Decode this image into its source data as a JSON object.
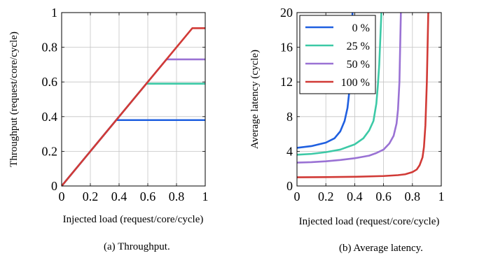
{
  "chart_data": [
    {
      "type": "line",
      "caption": "(a) Throughput.",
      "xlabel": "Injected load (request/core/cycle)",
      "ylabel": "Throughput (request/core/cycle)",
      "xlim": [
        0,
        1
      ],
      "ylim": [
        0,
        1
      ],
      "xticks": [
        0,
        0.2,
        0.4,
        0.6,
        0.8,
        1
      ],
      "xtick_labels": [
        "0",
        "0.2",
        "0.4",
        "0.6",
        "0.8",
        "1"
      ],
      "yticks": [
        0,
        0.2,
        0.4,
        0.6,
        0.8,
        1
      ],
      "ytick_labels": [
        "0",
        "0.2",
        "0.4",
        "0.6",
        "0.8",
        "1"
      ],
      "grid": true,
      "series": [
        {
          "legend": "0 %",
          "color": "#1f5fe0",
          "x": [
            0,
            0.38,
            1.0
          ],
          "y": [
            0,
            0.38,
            0.38
          ]
        },
        {
          "legend": "25 %",
          "color": "#3cc9a6",
          "x": [
            0,
            0.59,
            1.0
          ],
          "y": [
            0,
            0.59,
            0.59
          ]
        },
        {
          "legend": "50 %",
          "color": "#9a72d4",
          "x": [
            0,
            0.73,
            1.0
          ],
          "y": [
            0,
            0.73,
            0.73
          ]
        },
        {
          "legend": "100 %",
          "color": "#d13a36",
          "x": [
            0,
            0.91,
            1.0
          ],
          "y": [
            0,
            0.91,
            0.91
          ]
        }
      ]
    },
    {
      "type": "line",
      "caption": "(b) Average latency.",
      "xlabel": "Injected load (request/core/cycle)",
      "ylabel": "Average latency (cycle)",
      "xlim": [
        0,
        1
      ],
      "ylim": [
        0,
        20
      ],
      "xticks": [
        0,
        0.2,
        0.4,
        0.6,
        0.8,
        1
      ],
      "xtick_labels": [
        "0",
        "0.2",
        "0.4",
        "0.6",
        "0.8",
        "1"
      ],
      "yticks": [
        0,
        4,
        8,
        12,
        16,
        20
      ],
      "ytick_labels": [
        "0",
        "4",
        "8",
        "12",
        "16",
        "20"
      ],
      "grid": true,
      "legend_position": "top-left",
      "series": [
        {
          "name": "0 %",
          "color": "#1f5fe0",
          "x": [
            0,
            0.1,
            0.2,
            0.26,
            0.3,
            0.33,
            0.35,
            0.36,
            0.37,
            0.375,
            0.38,
            0.385
          ],
          "y": [
            4.4,
            4.6,
            5.0,
            5.5,
            6.3,
            7.5,
            9.0,
            10.5,
            13.0,
            15.5,
            18.0,
            20.0
          ]
        },
        {
          "name": "25 %",
          "color": "#3cc9a6",
          "x": [
            0,
            0.1,
            0.2,
            0.3,
            0.4,
            0.46,
            0.5,
            0.53,
            0.55,
            0.56,
            0.57,
            0.58,
            0.585
          ],
          "y": [
            3.6,
            3.7,
            3.9,
            4.2,
            4.8,
            5.5,
            6.4,
            7.5,
            9.5,
            11.5,
            14.0,
            18.0,
            20.0
          ]
        },
        {
          "name": "50 %",
          "color": "#9a72d4",
          "x": [
            0,
            0.1,
            0.2,
            0.3,
            0.4,
            0.5,
            0.55,
            0.6,
            0.64,
            0.67,
            0.69,
            0.7,
            0.71,
            0.72
          ],
          "y": [
            2.7,
            2.75,
            2.85,
            3.0,
            3.2,
            3.5,
            3.8,
            4.2,
            4.9,
            5.8,
            7.2,
            8.8,
            12.0,
            20.0
          ]
        },
        {
          "name": "100 %",
          "color": "#d13a36",
          "x": [
            0,
            0.2,
            0.4,
            0.6,
            0.7,
            0.75,
            0.8,
            0.83,
            0.85,
            0.87,
            0.88,
            0.89,
            0.9,
            0.91
          ],
          "y": [
            1.0,
            1.02,
            1.06,
            1.15,
            1.25,
            1.35,
            1.6,
            1.9,
            2.4,
            3.3,
            4.5,
            7.0,
            12.0,
            20.0
          ]
        }
      ]
    }
  ]
}
